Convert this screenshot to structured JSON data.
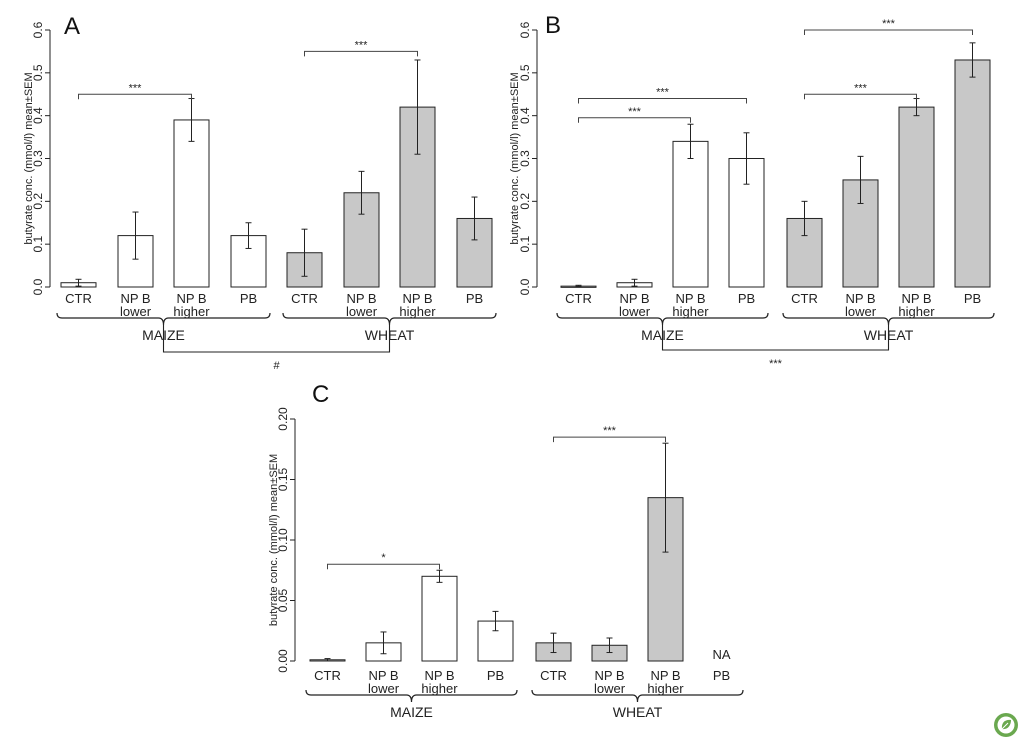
{
  "chart_data": [
    {
      "type": "bar",
      "panel": "A",
      "ylabel": "butyrate conc. (mmol/l) mean±SEM",
      "ylim": [
        0,
        0.6
      ],
      "yticks": [
        "0.0",
        "0.1",
        "0.2",
        "0.3",
        "0.4",
        "0.5",
        "0.6"
      ],
      "groups": [
        {
          "name": "MAIZE",
          "color": "#ffffff",
          "categories": [
            [
              "CTR"
            ],
            [
              "NP B",
              "lower"
            ],
            [
              "NP B",
              "higher"
            ],
            [
              "PB"
            ]
          ],
          "values": [
            0.01,
            0.12,
            0.39,
            0.12
          ],
          "errors": [
            0.008,
            0.055,
            0.05,
            0.03
          ]
        },
        {
          "name": "WHEAT",
          "color": "#c8c8c8",
          "categories": [
            [
              "CTR"
            ],
            [
              "NP B",
              "lower"
            ],
            [
              "NP B",
              "higher"
            ],
            [
              "PB"
            ]
          ],
          "values": [
            0.08,
            0.22,
            0.42,
            0.16
          ],
          "errors": [
            0.055,
            0.05,
            0.11,
            0.05
          ]
        }
      ],
      "comparisons": [
        {
          "group": 0,
          "from": 0,
          "to": 2,
          "label": "***",
          "y": 0.45
        },
        {
          "group": 1,
          "from": 0,
          "to": 2,
          "label": "***",
          "y": 0.55
        }
      ],
      "between": "#"
    },
    {
      "type": "bar",
      "panel": "B",
      "ylabel": "butyrate conc. (mmol/l) mean±SEM",
      "ylim": [
        0,
        0.6
      ],
      "yticks": [
        "0.0",
        "0.1",
        "0.2",
        "0.3",
        "0.4",
        "0.5",
        "0.6"
      ],
      "groups": [
        {
          "name": "MAIZE",
          "color": "#ffffff",
          "categories": [
            [
              "CTR"
            ],
            [
              "NP B",
              "lower"
            ],
            [
              "NP B",
              "higher"
            ],
            [
              "PB"
            ]
          ],
          "values": [
            0.002,
            0.01,
            0.34,
            0.3
          ],
          "errors": [
            0.002,
            0.008,
            0.04,
            0.06
          ]
        },
        {
          "name": "WHEAT",
          "color": "#c8c8c8",
          "categories": [
            [
              "CTR"
            ],
            [
              "NP B",
              "lower"
            ],
            [
              "NP B",
              "higher"
            ],
            [
              "PB"
            ]
          ],
          "values": [
            0.16,
            0.25,
            0.42,
            0.53
          ],
          "errors": [
            0.04,
            0.055,
            0.02,
            0.04
          ]
        }
      ],
      "comparisons": [
        {
          "group": 0,
          "from": 0,
          "to": 2,
          "label": "***",
          "y": 0.395
        },
        {
          "group": 0,
          "from": 0,
          "to": 3,
          "label": "***",
          "y": 0.44
        },
        {
          "group": 1,
          "from": 0,
          "to": 2,
          "label": "***",
          "y": 0.45
        },
        {
          "group": 1,
          "from": 0,
          "to": 3,
          "label": "***",
          "y": 0.6
        }
      ],
      "between": "***"
    },
    {
      "type": "bar",
      "panel": "C",
      "ylabel": "butyrate conc. (mmol/l) mean±SEM",
      "ylim": [
        0,
        0.2
      ],
      "yticks": [
        "0.00",
        "0.05",
        "0.10",
        "0.15",
        "0.20"
      ],
      "groups": [
        {
          "name": "MAIZE",
          "color": "#ffffff",
          "categories": [
            [
              "CTR"
            ],
            [
              "NP B",
              "lower"
            ],
            [
              "NP B",
              "higher"
            ],
            [
              "PB"
            ]
          ],
          "values": [
            0.001,
            0.015,
            0.07,
            0.033
          ],
          "errors": [
            0.001,
            0.009,
            0.005,
            0.008
          ]
        },
        {
          "name": "WHEAT",
          "color": "#c8c8c8",
          "categories": [
            [
              "CTR"
            ],
            [
              "NP B",
              "lower"
            ],
            [
              "NP B",
              "higher"
            ],
            [
              "PB"
            ]
          ],
          "values": [
            0.015,
            0.013,
            0.135,
            null
          ],
          "errors": [
            0.008,
            0.006,
            0.045,
            null
          ]
        }
      ],
      "na_label": "NA",
      "comparisons": [
        {
          "group": 0,
          "from": 0,
          "to": 2,
          "label": "*",
          "y": 0.08
        },
        {
          "group": 1,
          "from": 0,
          "to": 2,
          "label": "***",
          "y": 0.185
        }
      ]
    }
  ],
  "brand": {
    "icon": "leaf-logo-icon",
    "color": "#6aa84f"
  }
}
